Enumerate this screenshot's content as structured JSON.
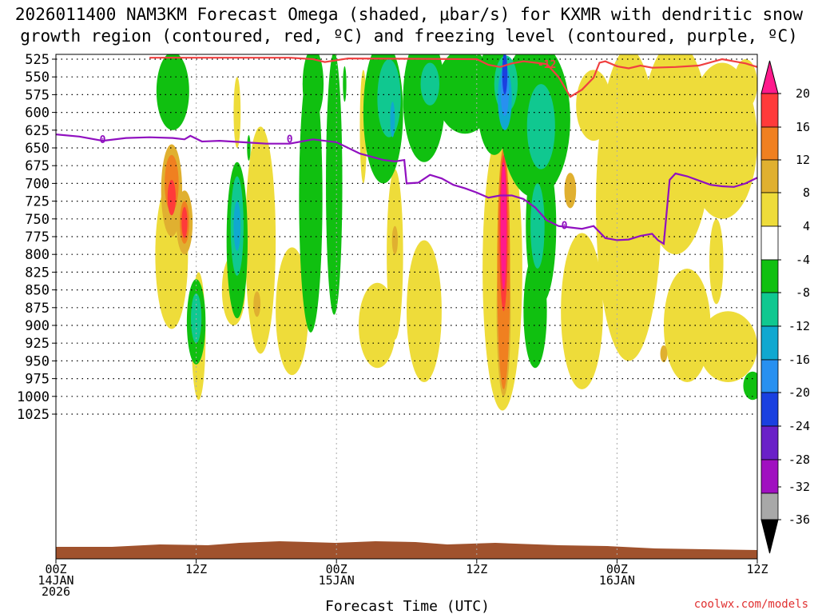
{
  "chart_data": {
    "type": "heatmap",
    "title_line1": "2026011400 NAM3KM Forecast Omega (shaded, μbar/s) for KXMR with dendritic snow",
    "title_line2": "growth region (contoured, red, ºC) and freezing level (contoured, purple, ºC)",
    "xlabel": "Forecast Time (UTC)",
    "credit": "coolwx.com/models",
    "x_ticks": [
      {
        "hour": 0,
        "lines": [
          "00Z",
          "14JAN",
          "2026"
        ]
      },
      {
        "hour": 12,
        "lines": [
          "12Z"
        ]
      },
      {
        "hour": 24,
        "lines": [
          "00Z",
          "15JAN"
        ]
      },
      {
        "hour": 36,
        "lines": [
          "12Z"
        ]
      },
      {
        "hour": 48,
        "lines": [
          "00Z",
          "16JAN"
        ]
      },
      {
        "hour": 60,
        "lines": [
          "12Z"
        ]
      }
    ],
    "x_range_hours": [
      0,
      60
    ],
    "y_ticks_mb": [
      525,
      550,
      575,
      600,
      625,
      650,
      675,
      700,
      725,
      750,
      775,
      800,
      825,
      850,
      875,
      900,
      925,
      950,
      975,
      1000,
      1025
    ],
    "colorbar": {
      "labels": [
        "20",
        "16",
        "12",
        "8",
        "4",
        "-4",
        "-8",
        "-12",
        "-16",
        "-20",
        "-24",
        "-28",
        "-32",
        "-36"
      ],
      "colors": [
        "#ff1a8c",
        "#ff3a3a",
        "#f08020",
        "#e0b030",
        "#eedc3a",
        "#ffffff",
        "#10c010",
        "#10c890",
        "#10a8d0",
        "#2890f0",
        "#1a40e0",
        "#6a20c8",
        "#a010c0",
        "#a8a8a8",
        "#000000"
      ]
    },
    "contours": [
      {
        "name": "freezing-level",
        "label": "0",
        "color": "#9010c0",
        "points": [
          [
            0,
            631
          ],
          [
            2,
            634
          ],
          [
            4,
            640
          ],
          [
            6,
            636
          ],
          [
            8,
            635
          ],
          [
            10,
            636
          ],
          [
            11,
            638
          ],
          [
            11.5,
            633
          ],
          [
            12.5,
            641
          ],
          [
            14,
            640
          ],
          [
            16,
            642
          ],
          [
            18,
            644
          ],
          [
            20,
            644
          ],
          [
            22,
            638
          ],
          [
            24,
            642
          ],
          [
            26,
            658
          ],
          [
            28,
            667
          ],
          [
            29,
            669
          ],
          [
            29.8,
            667
          ],
          [
            30,
            700
          ],
          [
            31,
            699
          ],
          [
            32,
            688
          ],
          [
            33,
            693
          ],
          [
            34,
            702
          ],
          [
            35,
            707
          ],
          [
            36,
            713
          ],
          [
            37,
            720
          ],
          [
            38,
            717
          ],
          [
            39,
            717
          ],
          [
            40,
            722
          ],
          [
            41,
            734
          ],
          [
            42,
            752
          ],
          [
            43,
            760
          ],
          [
            44,
            762
          ],
          [
            45,
            764
          ],
          [
            46,
            760
          ],
          [
            47,
            777
          ],
          [
            48,
            780
          ],
          [
            49,
            779
          ],
          [
            50,
            774
          ],
          [
            51,
            771
          ],
          [
            51.5,
            780
          ],
          [
            52,
            785
          ],
          [
            52.5,
            695
          ],
          [
            53,
            686
          ],
          [
            54,
            690
          ],
          [
            55,
            696
          ],
          [
            56,
            702
          ],
          [
            57,
            704
          ],
          [
            58,
            705
          ],
          [
            59,
            700
          ],
          [
            60,
            692
          ]
        ]
      },
      {
        "name": "dendritic-growth-zone",
        "label": "-12",
        "color": "#f04040",
        "points": [
          [
            8,
            523
          ],
          [
            20,
            523
          ],
          [
            22,
            525
          ],
          [
            23,
            529
          ],
          [
            25,
            524
          ],
          [
            36,
            525
          ],
          [
            37,
            533
          ],
          [
            38,
            536
          ],
          [
            39,
            531
          ],
          [
            40,
            528
          ],
          [
            41,
            530
          ],
          [
            42,
            532
          ],
          [
            43,
            550
          ],
          [
            44,
            578
          ],
          [
            45,
            568
          ],
          [
            46,
            551
          ],
          [
            46.5,
            530
          ],
          [
            47,
            528
          ],
          [
            48,
            535
          ],
          [
            49,
            538
          ],
          [
            50,
            534
          ],
          [
            51,
            537
          ],
          [
            53,
            536
          ],
          [
            55,
            534
          ],
          [
            57,
            525
          ],
          [
            58,
            528
          ],
          [
            59,
            531
          ],
          [
            60,
            536
          ]
        ]
      }
    ],
    "fields": [
      {
        "cat": "pos1",
        "x": 9.9,
        "y": 800,
        "rx": 1.4,
        "ry": 105
      },
      {
        "cat": "pos1",
        "x": 12.2,
        "y": 915,
        "rx": 0.6,
        "ry": 90
      },
      {
        "cat": "pos1",
        "x": 15.2,
        "y": 850,
        "rx": 1.0,
        "ry": 50
      },
      {
        "cat": "pos1",
        "x": 17.5,
        "y": 780,
        "rx": 1.3,
        "ry": 160
      },
      {
        "cat": "pos1",
        "x": 15.5,
        "y": 600,
        "rx": 0.3,
        "ry": 50
      },
      {
        "cat": "pos1",
        "x": 20.2,
        "y": 880,
        "rx": 1.4,
        "ry": 90
      },
      {
        "cat": "pos1",
        "x": 27.5,
        "y": 900,
        "rx": 1.6,
        "ry": 60
      },
      {
        "cat": "pos1",
        "x": 29.0,
        "y": 800,
        "rx": 0.7,
        "ry": 120
      },
      {
        "cat": "pos1",
        "x": 31.5,
        "y": 880,
        "rx": 1.5,
        "ry": 100
      },
      {
        "cat": "pos1",
        "x": 26.3,
        "y": 620,
        "rx": 0.3,
        "ry": 80
      },
      {
        "cat": "pos1",
        "x": 38.2,
        "y": 820,
        "rx": 1.7,
        "ry": 200
      },
      {
        "cat": "pos1",
        "x": 45.0,
        "y": 880,
        "rx": 1.8,
        "ry": 110
      },
      {
        "cat": "pos1",
        "x": 49.0,
        "y": 730,
        "rx": 2.8,
        "ry": 220
      },
      {
        "cat": "pos1",
        "x": 53.0,
        "y": 650,
        "rx": 3.0,
        "ry": 150
      },
      {
        "cat": "pos1",
        "x": 57.0,
        "y": 640,
        "rx": 3.0,
        "ry": 110
      },
      {
        "cat": "pos1",
        "x": 54.0,
        "y": 900,
        "rx": 2.0,
        "ry": 80
      },
      {
        "cat": "pos1",
        "x": 57.5,
        "y": 930,
        "rx": 2.5,
        "ry": 50
      },
      {
        "cat": "pos1",
        "x": 56.5,
        "y": 810,
        "rx": 0.6,
        "ry": 60
      },
      {
        "cat": "pos1",
        "x": 46.0,
        "y": 590,
        "rx": 1.5,
        "ry": 50
      },
      {
        "cat": "pos1",
        "x": 59.0,
        "y": 560,
        "rx": 1.0,
        "ry": 35
      },
      {
        "cat": "pos2",
        "x": 9.9,
        "y": 710,
        "rx": 0.9,
        "ry": 65
      },
      {
        "cat": "pos2",
        "x": 11.0,
        "y": 755,
        "rx": 0.7,
        "ry": 45
      },
      {
        "cat": "pos2",
        "x": 17.2,
        "y": 870,
        "rx": 0.3,
        "ry": 18
      },
      {
        "cat": "pos2",
        "x": 29.0,
        "y": 780,
        "rx": 0.25,
        "ry": 20
      },
      {
        "cat": "pos2",
        "x": 38.3,
        "y": 880,
        "rx": 0.6,
        "ry": 120
      },
      {
        "cat": "pos2",
        "x": 44.0,
        "y": 710,
        "rx": 0.5,
        "ry": 25
      },
      {
        "cat": "pos2",
        "x": 52.0,
        "y": 940,
        "rx": 0.3,
        "ry": 12
      },
      {
        "cat": "pos3",
        "x": 9.9,
        "y": 700,
        "rx": 0.6,
        "ry": 40
      },
      {
        "cat": "pos3",
        "x": 11.0,
        "y": 755,
        "rx": 0.4,
        "ry": 30
      },
      {
        "cat": "pos3",
        "x": 38.3,
        "y": 820,
        "rx": 0.55,
        "ry": 170
      },
      {
        "cat": "pos4",
        "x": 9.9,
        "y": 720,
        "rx": 0.35,
        "ry": 25
      },
      {
        "cat": "pos4",
        "x": 11.0,
        "y": 755,
        "rx": 0.25,
        "ry": 22
      },
      {
        "cat": "pos4",
        "x": 38.3,
        "y": 770,
        "rx": 0.35,
        "ry": 110
      },
      {
        "cat": "pos5",
        "x": 38.3,
        "y": 760,
        "rx": 0.25,
        "ry": 90
      },
      {
        "cat": "neg1",
        "x": 10.0,
        "y": 570,
        "rx": 1.4,
        "ry": 55
      },
      {
        "cat": "neg1",
        "x": 12.0,
        "y": 895,
        "rx": 0.8,
        "ry": 60
      },
      {
        "cat": "neg1",
        "x": 15.5,
        "y": 780,
        "rx": 0.9,
        "ry": 110
      },
      {
        "cat": "neg1",
        "x": 16.5,
        "y": 650,
        "rx": 0.15,
        "ry": 18
      },
      {
        "cat": "neg1",
        "x": 21.8,
        "y": 720,
        "rx": 1.0,
        "ry": 190
      },
      {
        "cat": "neg1",
        "x": 23.8,
        "y": 700,
        "rx": 0.7,
        "ry": 185
      },
      {
        "cat": "neg1",
        "x": 22.0,
        "y": 560,
        "rx": 0.9,
        "ry": 50
      },
      {
        "cat": "neg1",
        "x": 24.7,
        "y": 560,
        "rx": 0.15,
        "ry": 25
      },
      {
        "cat": "neg1",
        "x": 28.0,
        "y": 600,
        "rx": 1.7,
        "ry": 100
      },
      {
        "cat": "neg1",
        "x": 31.5,
        "y": 580,
        "rx": 1.8,
        "ry": 90
      },
      {
        "cat": "neg1",
        "x": 35.0,
        "y": 570,
        "rx": 2.5,
        "ry": 60
      },
      {
        "cat": "neg1",
        "x": 37.5,
        "y": 580,
        "rx": 1.5,
        "ry": 80
      },
      {
        "cat": "neg1",
        "x": 41.0,
        "y": 610,
        "rx": 3.0,
        "ry": 110
      },
      {
        "cat": "neg1",
        "x": 41.5,
        "y": 760,
        "rx": 1.3,
        "ry": 110
      },
      {
        "cat": "neg1",
        "x": 41.0,
        "y": 880,
        "rx": 1.0,
        "ry": 80
      },
      {
        "cat": "neg1",
        "x": 59.6,
        "y": 985,
        "rx": 0.8,
        "ry": 20
      },
      {
        "cat": "neg2",
        "x": 15.5,
        "y": 760,
        "rx": 0.55,
        "ry": 70
      },
      {
        "cat": "neg2",
        "x": 12.0,
        "y": 890,
        "rx": 0.45,
        "ry": 35
      },
      {
        "cat": "neg2",
        "x": 28.5,
        "y": 580,
        "rx": 1.0,
        "ry": 55
      },
      {
        "cat": "neg2",
        "x": 32.0,
        "y": 560,
        "rx": 0.8,
        "ry": 30
      },
      {
        "cat": "neg2",
        "x": 38.5,
        "y": 560,
        "rx": 1.0,
        "ry": 40
      },
      {
        "cat": "neg2",
        "x": 41.5,
        "y": 620,
        "rx": 1.2,
        "ry": 60
      },
      {
        "cat": "neg2",
        "x": 41.2,
        "y": 760,
        "rx": 0.6,
        "ry": 60
      },
      {
        "cat": "neg3",
        "x": 15.5,
        "y": 760,
        "rx": 0.3,
        "ry": 35
      },
      {
        "cat": "neg3",
        "x": 38.4,
        "y": 580,
        "rx": 0.6,
        "ry": 45
      },
      {
        "cat": "neg3",
        "x": 28.8,
        "y": 610,
        "rx": 0.2,
        "ry": 25
      },
      {
        "cat": "neg4",
        "x": 38.4,
        "y": 570,
        "rx": 0.35,
        "ry": 35
      },
      {
        "cat": "neg5",
        "x": 38.4,
        "y": 545,
        "rx": 0.22,
        "ry": 30
      }
    ]
  }
}
